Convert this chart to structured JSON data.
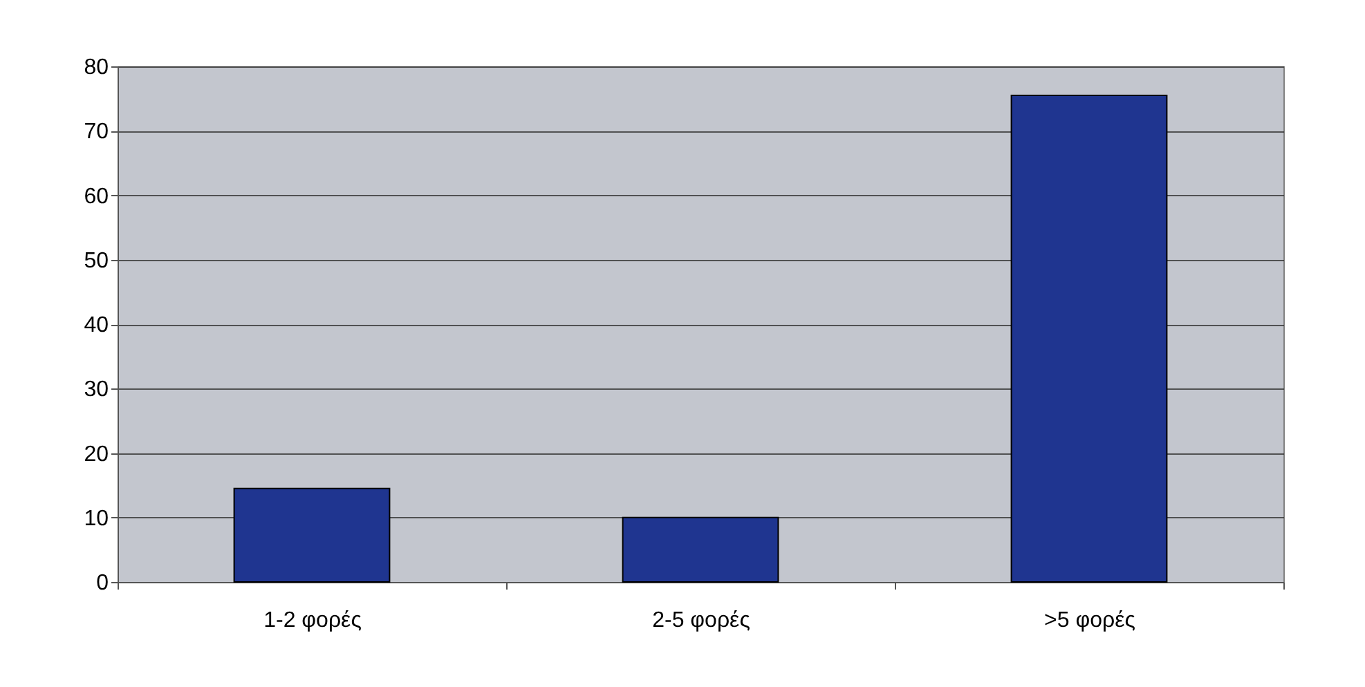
{
  "chart_data": {
    "type": "bar",
    "categories": [
      "1-2 φορές",
      "2-5 φορές",
      ">5 φορές"
    ],
    "values": [
      14.5,
      10,
      75.5
    ],
    "color": "#1f3590",
    "ylim": [
      0,
      80
    ],
    "yticks": [
      0,
      10,
      20,
      30,
      40,
      50,
      60,
      70,
      80
    ],
    "grid": "y"
  }
}
